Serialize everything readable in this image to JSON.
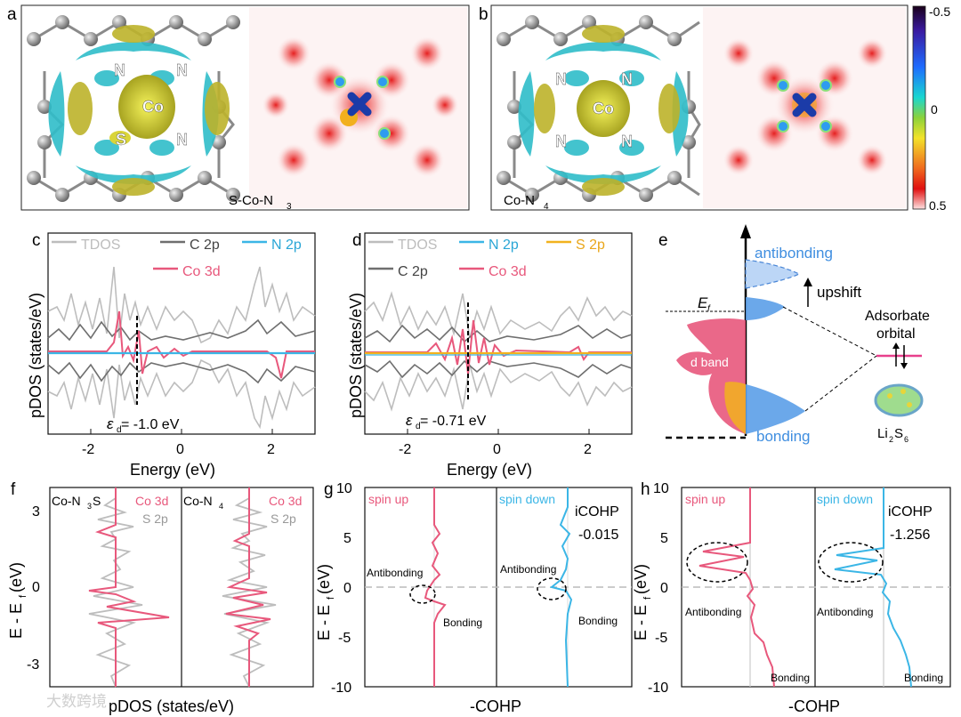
{
  "panels": {
    "a": "a",
    "b": "b",
    "c": "c",
    "d": "d",
    "e": "e",
    "f": "f",
    "g": "g",
    "h": "h"
  },
  "colors": {
    "tdos": "#bdbdbd",
    "c2p": "#6f6f6f",
    "n2p": "#3bb6e6",
    "co3d": "#e8587c",
    "s2p": "#f2b21e",
    "axis": "#111111",
    "dash": "#000000",
    "bond": "#5b9fe8"
  },
  "panel_a": {
    "atoms": {
      "n1": "N",
      "n2": "N",
      "co": "Co",
      "s": "S",
      "n3": "N"
    },
    "label_main": "S-Co-N",
    "label_sub": "3"
  },
  "panel_b": {
    "atoms": {
      "n1": "N",
      "n2": "N",
      "co": "Co",
      "n3": "N",
      "n4": "N"
    },
    "label_main": "Co-N",
    "label_sub": "4"
  },
  "colorbar": {
    "top": "-0.5",
    "mid": "0",
    "bottom": "0.5"
  },
  "panel_c": {
    "legend": {
      "tdos": "TDOS",
      "c2p": "C 2p",
      "n2p": "N 2p",
      "co3d": "Co 3d"
    },
    "ylabel": "pDOS (states/eV)",
    "xlabel": "Energy (eV)",
    "epsilon_symbol": "ε",
    "epsilon_sub": "d",
    "epsilon_value": " = -1.0 eV",
    "xticks": [
      "-2",
      "0",
      "2"
    ]
  },
  "panel_d": {
    "legend": {
      "tdos": "TDOS",
      "n2p": "N 2p",
      "s2p": "S 2p",
      "c2p": "C 2p",
      "co3d": "Co 3d"
    },
    "ylabel": "pDOS (states/eV)",
    "xlabel": "Energy (eV)",
    "epsilon_symbol": "ε",
    "epsilon_sub": "d",
    "epsilon_value": " = -0.71 eV",
    "xticks": [
      "-2",
      "0",
      "2"
    ]
  },
  "panel_e": {
    "antibonding": "antibonding",
    "upshift": "upshift",
    "ef_main": "E",
    "ef_sub": "f",
    "adsorbate_line1": "Adsorbate",
    "adsorbate_line2": "orbital",
    "d_band": "d band",
    "bonding": "bonding",
    "li2s6_main": "Li",
    "li2s6_sub1": "2",
    "li2s6_mid": "S",
    "li2s6_sub2": "6"
  },
  "panel_f": {
    "left_main": "Co-N",
    "left_sub": "3",
    "left_end": "S",
    "right_main": "Co-N",
    "right_sub": "4",
    "co3d": "Co 3d",
    "s2p": "S 2p",
    "ylabel": "E - E",
    "ylabel_sub": "f",
    "ylabel_end": " (eV)",
    "xlabel": "pDOS (states/eV)",
    "yticks": [
      "3",
      "0",
      "-3"
    ]
  },
  "panel_g": {
    "spin_up": "spin up",
    "spin_down": "spin down",
    "icohp_label": "iCOHP",
    "icohp_value": "-0.015",
    "antibonding": "Antibonding",
    "bonding": "Bonding",
    "antibonding2": "Antibonding",
    "bonding2": "Bonding",
    "ylabel": "E - E",
    "ylabel_sub": "f",
    "ylabel_end": " (eV)",
    "xlabel": "-COHP",
    "yticks": [
      "10",
      "5",
      "0",
      "-5",
      "-10"
    ]
  },
  "panel_h": {
    "spin_up": "spin up",
    "spin_down": "spin down",
    "icohp_label": "iCOHP",
    "icohp_value": "-1.256",
    "antibonding": "Antibonding",
    "bonding": "Bonding",
    "antibonding2": "Antibonding",
    "bonding2": "Bonding",
    "ylabel": "E - E",
    "ylabel_sub": "f",
    "ylabel_end": " (eV)",
    "xlabel": "-COHP",
    "yticks": [
      "10",
      "5",
      "0",
      "-5",
      "-10"
    ]
  },
  "watermark": "大数跨境"
}
